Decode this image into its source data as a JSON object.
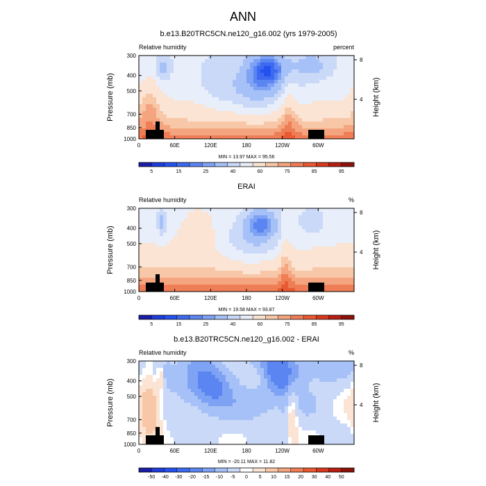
{
  "figure": {
    "title": "ANN"
  },
  "panels": [
    {
      "title": "b.e13.B20TRC5CN.ne120_g16.002 (yrs 1979-2005)",
      "left_label": "Relative humidity",
      "right_label": "percent",
      "stats": "MIN = 13.97  MAX = 95.56",
      "colorbar_labels": [
        "5",
        "15",
        "25",
        "40",
        "60",
        "75",
        "85",
        "95"
      ]
    },
    {
      "title": "ERAI",
      "left_label": "Relative humidity",
      "right_label": "%",
      "stats": "MIN = 19.58  MAX = 93.87",
      "colorbar_labels": [
        "5",
        "15",
        "25",
        "40",
        "60",
        "75",
        "85",
        "95"
      ]
    },
    {
      "title": "b.e13.B20TRC5CN.ne120_g16.002 - ERAI",
      "left_label": "Relative humidity",
      "right_label": "%",
      "stats": "MIN = -20.11  MAX = 11.82",
      "colorbar_labels": [
        "-50",
        "-40",
        "-30",
        "-20",
        "-15",
        "-10",
        "-5",
        "0",
        "5",
        "10",
        "15",
        "20",
        "30",
        "40",
        "50"
      ]
    }
  ],
  "chart_data": [
    {
      "type": "heatmap",
      "title": "b.e13.B20TRC5CN.ne120_g16.002 (yrs 1979-2005)",
      "ylabel": "Pressure (mb)",
      "y2label": "Height (km)",
      "x_ticks": [
        "0",
        "60E",
        "120E",
        "180",
        "120W",
        "60W"
      ],
      "x_tick_values": [
        0,
        60,
        120,
        180,
        240,
        300
      ],
      "xlim": [
        0,
        360
      ],
      "y_ticks": [
        "300",
        "400",
        "500",
        "700",
        "850",
        "1000"
      ],
      "y_tick_values": [
        300,
        400,
        500,
        700,
        850,
        1000
      ],
      "ylim": [
        300,
        1000
      ],
      "y_scale": "log",
      "y2_ticks": [
        "8",
        "4"
      ],
      "y2_tick_values": [
        8,
        4
      ],
      "colorbar_levels": [
        5,
        10,
        15,
        20,
        25,
        30,
        40,
        50,
        60,
        70,
        75,
        80,
        85,
        90,
        95
      ],
      "colors": [
        "#1b1fa8",
        "#1d3ddd",
        "#2552ee",
        "#3d6af0",
        "#5b86f2",
        "#7ea2f4",
        "#a6c1f7",
        "#cad9f8",
        "#e8eefa",
        "#fbe4d3",
        "#f8c7a8",
        "#f4a57f",
        "#ef7d55",
        "#e95a32",
        "#d9381d",
        "#b91e12",
        "#8d120a"
      ],
      "min": 13.97,
      "max": 95.56
    },
    {
      "type": "heatmap",
      "title": "ERAI",
      "ylabel": "Pressure (mb)",
      "y2label": "Height (km)",
      "x_ticks": [
        "0",
        "60E",
        "120E",
        "180",
        "120W",
        "60W"
      ],
      "x_tick_values": [
        0,
        60,
        120,
        180,
        240,
        300
      ],
      "xlim": [
        0,
        360
      ],
      "y_ticks": [
        "300",
        "400",
        "500",
        "700",
        "850",
        "1000"
      ],
      "y_tick_values": [
        300,
        400,
        500,
        700,
        850,
        1000
      ],
      "ylim": [
        300,
        1000
      ],
      "y_scale": "log",
      "y2_ticks": [
        "8",
        "4"
      ],
      "y2_tick_values": [
        8,
        4
      ],
      "colorbar_levels": [
        5,
        10,
        15,
        20,
        25,
        30,
        40,
        50,
        60,
        70,
        75,
        80,
        85,
        90,
        95
      ],
      "colors": [
        "#1b1fa8",
        "#1d3ddd",
        "#2552ee",
        "#3d6af0",
        "#5b86f2",
        "#7ea2f4",
        "#a6c1f7",
        "#cad9f8",
        "#e8eefa",
        "#fbe4d3",
        "#f8c7a8",
        "#f4a57f",
        "#ef7d55",
        "#e95a32",
        "#d9381d",
        "#b91e12",
        "#8d120a"
      ],
      "min": 19.58,
      "max": 93.87
    },
    {
      "type": "heatmap",
      "title": "b.e13.B20TRC5CN.ne120_g16.002 - ERAI",
      "ylabel": "Pressure (mb)",
      "y2label": "Height (km)",
      "x_ticks": [
        "0",
        "60E",
        "120E",
        "180",
        "120W",
        "60W"
      ],
      "x_tick_values": [
        0,
        60,
        120,
        180,
        240,
        300
      ],
      "xlim": [
        0,
        360
      ],
      "y_ticks": [
        "300",
        "400",
        "500",
        "700",
        "850",
        "1000"
      ],
      "y_tick_values": [
        300,
        400,
        500,
        700,
        850,
        1000
      ],
      "ylim": [
        300,
        1000
      ],
      "y_scale": "log",
      "y2_ticks": [
        "8",
        "4"
      ],
      "y2_tick_values": [
        8,
        4
      ],
      "colorbar_levels": [
        -50,
        -40,
        -30,
        -20,
        -15,
        -10,
        -5,
        -1,
        1,
        5,
        10,
        15,
        20,
        30,
        40,
        50
      ],
      "colors": [
        "#1b1fa8",
        "#1d3ddd",
        "#2552ee",
        "#3d6af0",
        "#5b86f2",
        "#7ea2f4",
        "#a6c1f7",
        "#cad9f8",
        "#ffffff",
        "#fbe4d3",
        "#f8c7a8",
        "#f4a57f",
        "#ef7d55",
        "#e95a32",
        "#d9381d",
        "#b91e12",
        "#8d120a"
      ],
      "min": -20.11,
      "max": 11.82
    }
  ]
}
